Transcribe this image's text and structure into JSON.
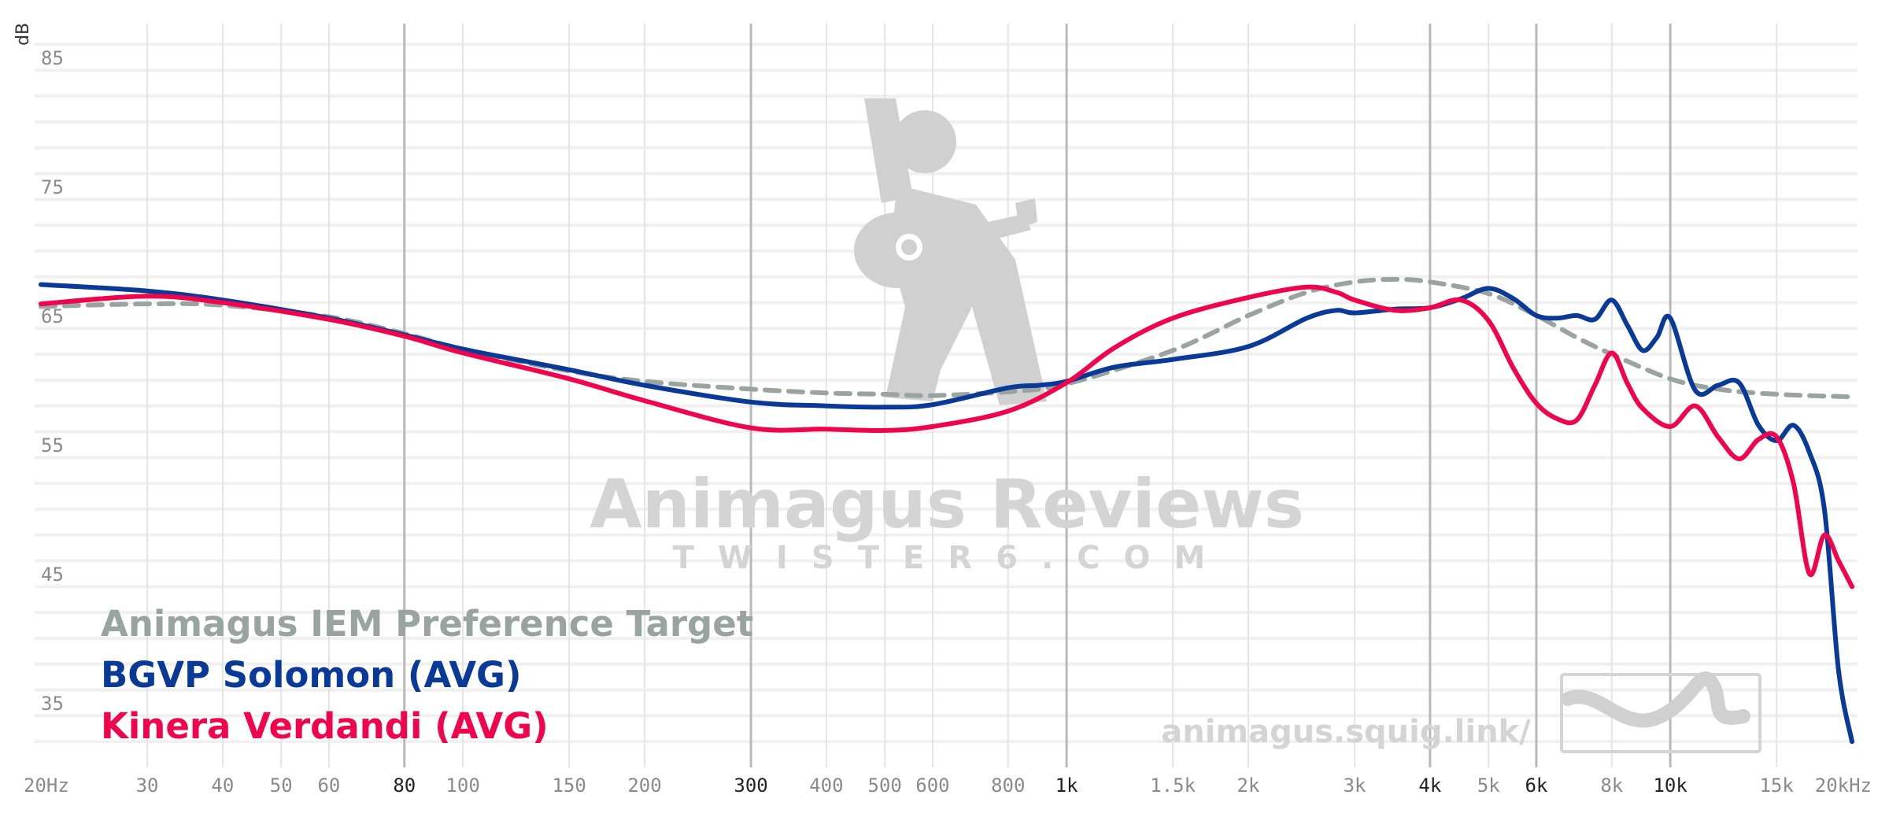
{
  "chart_data": {
    "type": "line",
    "title": "",
    "xlabel": "",
    "ylabel": "dB",
    "x_scale": "log",
    "xlim": [
      20,
      20000
    ],
    "ylim": [
      30,
      87
    ],
    "grid": true,
    "legend_position": "bottom-left",
    "x_ticks": [
      {
        "value": 20,
        "label": "20Hz",
        "major": false
      },
      {
        "value": 30,
        "label": "30",
        "major": false
      },
      {
        "value": 40,
        "label": "40",
        "major": false
      },
      {
        "value": 50,
        "label": "50",
        "major": false
      },
      {
        "value": 60,
        "label": "60",
        "major": false
      },
      {
        "value": 80,
        "label": "80",
        "major": true
      },
      {
        "value": 100,
        "label": "100",
        "major": false
      },
      {
        "value": 150,
        "label": "150",
        "major": false
      },
      {
        "value": 200,
        "label": "200",
        "major": false
      },
      {
        "value": 300,
        "label": "300",
        "major": true
      },
      {
        "value": 400,
        "label": "400",
        "major": false
      },
      {
        "value": 500,
        "label": "500",
        "major": false
      },
      {
        "value": 600,
        "label": "600",
        "major": false
      },
      {
        "value": 800,
        "label": "800",
        "major": false
      },
      {
        "value": 1000,
        "label": "1k",
        "major": true
      },
      {
        "value": 1500,
        "label": "1.5k",
        "major": false
      },
      {
        "value": 2000,
        "label": "2k",
        "major": false
      },
      {
        "value": 3000,
        "label": "3k",
        "major": false
      },
      {
        "value": 4000,
        "label": "4k",
        "major": true
      },
      {
        "value": 5000,
        "label": "5k",
        "major": false
      },
      {
        "value": 6000,
        "label": "6k",
        "major": true
      },
      {
        "value": 8000,
        "label": "8k",
        "major": false
      },
      {
        "value": 10000,
        "label": "10k",
        "major": true
      },
      {
        "value": 15000,
        "label": "15k",
        "major": false
      },
      {
        "value": 20000,
        "label": "20kHz",
        "major": false
      }
    ],
    "y_ticks": [
      {
        "value": 85,
        "label": "85"
      },
      {
        "value": 75,
        "label": "75"
      },
      {
        "value": 65,
        "label": "65"
      },
      {
        "value": 55,
        "label": "55"
      },
      {
        "value": 45,
        "label": "45"
      },
      {
        "value": 35,
        "label": "35"
      }
    ],
    "series": [
      {
        "name": "Animagus IEM Preference Target",
        "color": "#99a3a0",
        "dashed": true,
        "x": [
          20,
          30,
          40,
          60,
          80,
          100,
          150,
          200,
          300,
          400,
          500,
          600,
          800,
          1000,
          1500,
          2000,
          2500,
          3000,
          3500,
          4000,
          5000,
          6000,
          7000,
          8000,
          10000,
          12000,
          15000,
          20000
        ],
        "y": [
          65.7,
          65.9,
          65.8,
          64.9,
          63.6,
          62.4,
          60.7,
          59.9,
          59.3,
          59.0,
          58.9,
          58.8,
          59.1,
          59.7,
          62.3,
          65.0,
          66.8,
          67.6,
          67.8,
          67.6,
          66.7,
          65.0,
          63.3,
          62.0,
          60.1,
          59.3,
          58.9,
          58.7
        ]
      },
      {
        "name": "BGVP Solomon (AVG)",
        "color": "#0a3a97",
        "dashed": false,
        "x": [
          20,
          30,
          40,
          60,
          80,
          100,
          150,
          200,
          300,
          400,
          500,
          600,
          800,
          900,
          1000,
          1200,
          1500,
          2000,
          2500,
          2800,
          3000,
          3500,
          4000,
          4500,
          5000,
          5500,
          6000,
          6500,
          7000,
          7500,
          8000,
          8500,
          9000,
          9500,
          10000,
          11000,
          12000,
          13000,
          14000,
          15000,
          16000,
          17000,
          18000,
          19000,
          20000
        ],
        "y": [
          67.4,
          66.9,
          66.2,
          64.8,
          63.5,
          62.4,
          60.8,
          59.6,
          58.3,
          58.0,
          57.9,
          58.1,
          59.4,
          59.6,
          59.9,
          61.0,
          61.6,
          62.6,
          64.8,
          65.4,
          65.2,
          65.5,
          65.6,
          66.3,
          67.1,
          66.3,
          65.0,
          64.8,
          65.0,
          64.7,
          66.2,
          64.2,
          62.3,
          63.3,
          64.8,
          59.2,
          59.6,
          59.8,
          56.5,
          55.3,
          56.5,
          54.4,
          50.0,
          37.5,
          32.0
        ]
      },
      {
        "name": "Kinera Verdandi (AVG)",
        "color": "#f0054d",
        "dashed": false,
        "x": [
          20,
          30,
          40,
          60,
          80,
          100,
          150,
          200,
          300,
          400,
          500,
          600,
          800,
          1000,
          1200,
          1500,
          2000,
          2500,
          2800,
          3000,
          3500,
          4000,
          4500,
          5000,
          5500,
          6000,
          6500,
          7000,
          7500,
          8000,
          8500,
          9000,
          10000,
          11000,
          12000,
          13000,
          14000,
          15000,
          16000,
          17000,
          18000,
          19000,
          20000
        ],
        "y": [
          65.9,
          66.5,
          66.0,
          64.7,
          63.4,
          62.1,
          60.1,
          58.4,
          56.3,
          56.2,
          56.1,
          56.4,
          57.6,
          59.8,
          62.5,
          64.8,
          66.4,
          67.2,
          66.8,
          66.2,
          65.4,
          65.6,
          66.2,
          64.6,
          60.9,
          58.2,
          57.0,
          56.9,
          59.6,
          62.1,
          59.7,
          57.8,
          56.4,
          58.0,
          55.6,
          53.9,
          55.4,
          55.6,
          52.0,
          45.0,
          48.0,
          46.0,
          44.0
        ]
      }
    ]
  },
  "watermark": {
    "title": "Animagus Reviews",
    "subtitle": "TWISTER6.COM",
    "url": "animagus.squig.link/",
    "logo_icon": "guitar-player-icon",
    "badge_icon": "wave-badge-icon"
  },
  "colors": {
    "grid_minor": "#e4e4e4",
    "grid_major": "#b8b8b8",
    "grid_horizontal": "#f0f0f0"
  }
}
